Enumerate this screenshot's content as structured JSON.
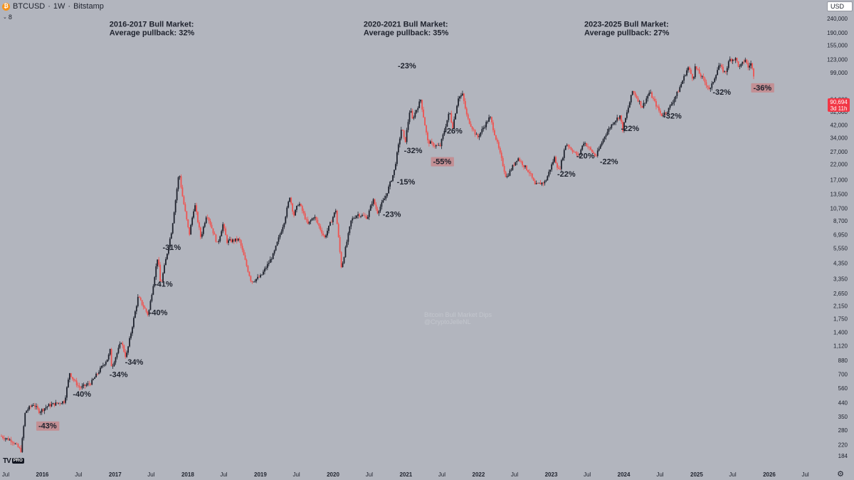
{
  "header": {
    "symbol": "BTCUSD",
    "separator": "·",
    "interval": "1W",
    "exchange": "Bitstamp",
    "indicator_count": "8",
    "symbol_icon": "bitcoin-icon",
    "currency": "USD"
  },
  "price_tag": {
    "price": "90,694",
    "countdown": "3d 11h"
  },
  "logo": {
    "mark": "TV",
    "badge": "PRO"
  },
  "colors": {
    "background": "#b2b5be",
    "up": "#1e222d",
    "down": "#ef5350",
    "text": "#1e222d",
    "highlight": "#c38f94",
    "price_tag": "#f23645"
  },
  "chart_data": {
    "type": "candlestick",
    "title": "",
    "scale": "log",
    "yaxis": {
      "ticks": [
        184,
        220,
        280,
        350,
        440,
        560,
        700,
        880,
        1120,
        1400,
        1750,
        2150,
        2650,
        3350,
        4350,
        5550,
        6950,
        8700,
        10700,
        13500,
        17000,
        22000,
        27000,
        34000,
        42000,
        52000,
        64000,
        99000,
        123000,
        155000,
        190000,
        240000
      ],
      "tick_labels": [
        "184",
        "220",
        "280",
        "350",
        "440",
        "560",
        "700",
        "880",
        "1,120",
        "1,400",
        "1,750",
        "2,150",
        "2,650",
        "3,350",
        "4,350",
        "5,550",
        "6,950",
        "8,700",
        "10,700",
        "13,500",
        "17,000",
        "22,000",
        "27,000",
        "34,000",
        "42,000",
        "52,000",
        "64,000",
        "99,000",
        "123,000",
        "155,000",
        "190,000",
        "240,000"
      ],
      "range": [
        160,
        290000
      ]
    },
    "xaxis": {
      "range": [
        "2015-07-01",
        "2026-11-01"
      ],
      "ticks": [
        {
          "date": "2015-07-01",
          "label": "Jul",
          "bold": false
        },
        {
          "date": "2016-01-01",
          "label": "2016",
          "bold": true
        },
        {
          "date": "2016-07-01",
          "label": "Jul",
          "bold": false
        },
        {
          "date": "2017-01-01",
          "label": "2017",
          "bold": true
        },
        {
          "date": "2017-07-01",
          "label": "Jul",
          "bold": false
        },
        {
          "date": "2018-01-01",
          "label": "2018",
          "bold": true
        },
        {
          "date": "2018-07-01",
          "label": "Jul",
          "bold": false
        },
        {
          "date": "2019-01-01",
          "label": "2019",
          "bold": true
        },
        {
          "date": "2019-07-01",
          "label": "Jul",
          "bold": false
        },
        {
          "date": "2020-01-01",
          "label": "2020",
          "bold": true
        },
        {
          "date": "2020-07-01",
          "label": "Jul",
          "bold": false
        },
        {
          "date": "2021-01-01",
          "label": "2021",
          "bold": true
        },
        {
          "date": "2021-07-01",
          "label": "Jul",
          "bold": false
        },
        {
          "date": "2022-01-01",
          "label": "2022",
          "bold": true
        },
        {
          "date": "2022-07-01",
          "label": "Jul",
          "bold": false
        },
        {
          "date": "2023-01-01",
          "label": "2023",
          "bold": true
        },
        {
          "date": "2023-07-01",
          "label": "Jul",
          "bold": false
        },
        {
          "date": "2024-01-01",
          "label": "2024",
          "bold": true
        },
        {
          "date": "2024-07-01",
          "label": "Jul",
          "bold": false
        },
        {
          "date": "2025-01-01",
          "label": "2025",
          "bold": true
        },
        {
          "date": "2025-07-01",
          "label": "Jul",
          "bold": false
        },
        {
          "date": "2026-01-01",
          "label": "2026",
          "bold": true
        },
        {
          "date": "2026-07-01",
          "label": "Jul",
          "bold": false
        }
      ]
    },
    "series": [
      {
        "price_path": [
          [
            "2015-07-01",
            255
          ],
          [
            "2015-09-01",
            235
          ],
          [
            "2015-10-15",
            200
          ],
          [
            "2015-11-05",
            380
          ],
          [
            "2015-12-15",
            430
          ],
          [
            "2016-01-15",
            380
          ],
          [
            "2016-03-01",
            420
          ],
          [
            "2016-05-20",
            450
          ],
          [
            "2016-06-15",
            720
          ],
          [
            "2016-07-01",
            650
          ],
          [
            "2016-08-05",
            560
          ],
          [
            "2016-10-01",
            610
          ],
          [
            "2016-12-25",
            920
          ],
          [
            "2017-01-05",
            1050
          ],
          [
            "2017-01-12",
            780
          ],
          [
            "2017-03-01",
            1200
          ],
          [
            "2017-03-25",
            920
          ],
          [
            "2017-05-25",
            2500
          ],
          [
            "2017-07-15",
            1850
          ],
          [
            "2017-09-01",
            4900
          ],
          [
            "2017-09-15",
            3000
          ],
          [
            "2017-11-10",
            7500
          ],
          [
            "2017-12-17",
            19500
          ],
          [
            "2018-01-01",
            13500
          ],
          [
            "2018-02-06",
            6900
          ],
          [
            "2018-03-05",
            11500
          ],
          [
            "2018-04-05",
            6600
          ],
          [
            "2018-05-05",
            9800
          ],
          [
            "2018-06-28",
            5900
          ],
          [
            "2018-07-25",
            8200
          ],
          [
            "2018-08-15",
            6200
          ],
          [
            "2018-10-15",
            6400
          ],
          [
            "2018-11-20",
            4200
          ],
          [
            "2018-12-15",
            3200
          ],
          [
            "2019-02-01",
            3500
          ],
          [
            "2019-04-05",
            5000
          ],
          [
            "2019-05-30",
            8700
          ],
          [
            "2019-06-26",
            13000
          ],
          [
            "2019-07-16",
            9500
          ],
          [
            "2019-08-10",
            11800
          ],
          [
            "2019-09-25",
            8200
          ],
          [
            "2019-10-26",
            9400
          ],
          [
            "2019-12-18",
            6600
          ],
          [
            "2020-02-12",
            10400
          ],
          [
            "2020-03-12",
            4000
          ],
          [
            "2020-04-30",
            8800
          ],
          [
            "2020-06-01",
            9700
          ],
          [
            "2020-07-20",
            9200
          ],
          [
            "2020-08-17",
            12400
          ],
          [
            "2020-09-08",
            10000
          ],
          [
            "2020-10-20",
            13000
          ],
          [
            "2020-12-01",
            19500
          ],
          [
            "2021-01-08",
            40500
          ],
          [
            "2021-01-25",
            31000
          ],
          [
            "2021-02-21",
            57000
          ],
          [
            "2021-02-28",
            45000
          ],
          [
            "2021-04-14",
            63500
          ],
          [
            "2021-05-19",
            32000
          ],
          [
            "2021-06-22",
            30000
          ],
          [
            "2021-07-20",
            29500
          ],
          [
            "2021-09-06",
            52500
          ],
          [
            "2021-09-21",
            40000
          ],
          [
            "2021-10-20",
            66000
          ],
          [
            "2021-11-10",
            68800
          ],
          [
            "2021-12-04",
            47000
          ],
          [
            "2022-01-24",
            34000
          ],
          [
            "2022-03-28",
            48000
          ],
          [
            "2022-05-12",
            28000
          ],
          [
            "2022-06-18",
            17600
          ],
          [
            "2022-08-14",
            24500
          ],
          [
            "2022-10-15",
            19000
          ],
          [
            "2022-11-09",
            15600
          ],
          [
            "2022-12-31",
            16500
          ],
          [
            "2023-02-15",
            24500
          ],
          [
            "2023-03-10",
            19600
          ],
          [
            "2023-04-14",
            31000
          ],
          [
            "2023-06-15",
            25000
          ],
          [
            "2023-07-13",
            31800
          ],
          [
            "2023-09-11",
            25000
          ],
          [
            "2023-10-25",
            35000
          ],
          [
            "2023-12-08",
            44000
          ],
          [
            "2024-01-11",
            49000
          ],
          [
            "2024-01-23",
            38500
          ],
          [
            "2024-03-14",
            73800
          ],
          [
            "2024-05-01",
            56500
          ],
          [
            "2024-06-07",
            72000
          ],
          [
            "2024-08-05",
            49000
          ],
          [
            "2024-09-06",
            53000
          ],
          [
            "2024-10-29",
            73000
          ],
          [
            "2024-12-17",
            108000
          ],
          [
            "2025-01-13",
            89000
          ],
          [
            "2025-01-20",
            109500
          ],
          [
            "2025-04-07",
            74400
          ],
          [
            "2025-05-22",
            111900
          ],
          [
            "2025-06-22",
            98000
          ],
          [
            "2025-07-14",
            123000
          ],
          [
            "2025-08-14",
            124000
          ],
          [
            "2025-09-01",
            107000
          ],
          [
            "2025-10-06",
            126200
          ],
          [
            "2025-10-10",
            104500
          ],
          [
            "2025-10-28",
            116000
          ],
          [
            "2025-11-16",
            90694
          ]
        ]
      }
    ],
    "annotations": [
      {
        "id": "t1",
        "lines": [
          "2016-2017 Bull Market:",
          "Average pullback: 32%"
        ],
        "date": "2017-01-01",
        "price": 210000,
        "highlight": false
      },
      {
        "id": "t2",
        "lines": [
          "2020-2021 Bull Market:",
          "Average pullback: 35%"
        ],
        "date": "2020-07-01",
        "price": 210000,
        "highlight": false
      },
      {
        "id": "t3",
        "lines": [
          "2023-2025 Bull Market:",
          "Average pullback: 27%"
        ],
        "date": "2023-07-15",
        "price": 210000,
        "highlight": false
      },
      {
        "id": "p1",
        "lines": [
          "-43%"
        ],
        "date": "2016-01-10",
        "price": 288,
        "highlight": true
      },
      {
        "id": "p2",
        "lines": [
          "-40%"
        ],
        "date": "2016-07-01",
        "price": 485,
        "highlight": false
      },
      {
        "id": "p3",
        "lines": [
          "-34%"
        ],
        "date": "2017-01-01",
        "price": 670,
        "highlight": false
      },
      {
        "id": "p4",
        "lines": [
          "-34%"
        ],
        "date": "2017-03-20",
        "price": 820,
        "highlight": false
      },
      {
        "id": "p5",
        "lines": [
          "-40%"
        ],
        "date": "2017-07-20",
        "price": 1850,
        "highlight": false
      },
      {
        "id": "p6",
        "lines": [
          "-41%"
        ],
        "date": "2017-08-15",
        "price": 2950,
        "highlight": false
      },
      {
        "id": "p7",
        "lines": [
          "-31%"
        ],
        "date": "2017-09-25",
        "price": 5400,
        "highlight": false
      },
      {
        "id": "p8",
        "lines": [
          "-23%"
        ],
        "date": "2020-10-05",
        "price": 9300,
        "highlight": false
      },
      {
        "id": "p9",
        "lines": [
          "-15%"
        ],
        "date": "2020-12-15",
        "price": 15800,
        "highlight": false
      },
      {
        "id": "p10",
        "lines": [
          "-32%"
        ],
        "date": "2021-01-20",
        "price": 26500,
        "highlight": false
      },
      {
        "id": "p11",
        "lines": [
          "-23%"
        ],
        "date": "2020-12-20",
        "price": 106000,
        "highlight": false
      },
      {
        "id": "p12",
        "lines": [
          "-55%"
        ],
        "date": "2021-06-15",
        "price": 22000,
        "highlight": true
      },
      {
        "id": "p13",
        "lines": [
          "-26%"
        ],
        "date": "2021-08-10",
        "price": 36500,
        "highlight": false
      },
      {
        "id": "p14",
        "lines": [
          "-22%"
        ],
        "date": "2023-03-01",
        "price": 18000,
        "highlight": false
      },
      {
        "id": "p15",
        "lines": [
          "-20%"
        ],
        "date": "2023-06-05",
        "price": 24200,
        "highlight": false
      },
      {
        "id": "p16",
        "lines": [
          "-22%"
        ],
        "date": "2023-10-01",
        "price": 22000,
        "highlight": false
      },
      {
        "id": "p17",
        "lines": [
          "-22%"
        ],
        "date": "2024-01-15",
        "price": 38000,
        "highlight": false
      },
      {
        "id": "p18",
        "lines": [
          "-32%"
        ],
        "date": "2024-08-15",
        "price": 46500,
        "highlight": false
      },
      {
        "id": "p19",
        "lines": [
          "-32%"
        ],
        "date": "2025-04-20",
        "price": 69000,
        "highlight": false
      },
      {
        "id": "p20",
        "lines": [
          "-36%"
        ],
        "date": "2025-11-10",
        "price": 74000,
        "highlight": true
      }
    ],
    "watermark": [
      "Bitcoin Bull Market Dips",
      "@CryptoJelleNL"
    ],
    "grid": false,
    "legend": "none"
  }
}
